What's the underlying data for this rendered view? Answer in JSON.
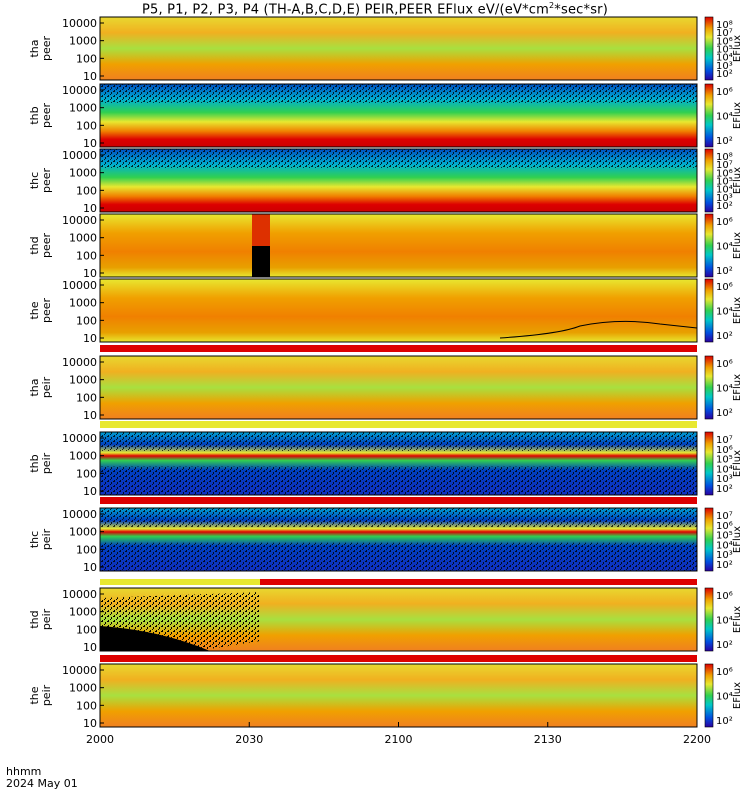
{
  "title": "P5, P1, P2, P3, P4 (TH-A,B,C,D,E) PEIR,PEER EFlux eV/(eV*cm",
  "title_sup": "2",
  "title_end": "*sec*sr)",
  "colorbar_label": "EFlux",
  "time_axis": {
    "line1": "hhmm",
    "line2": "2024 May 01"
  },
  "colors": {
    "red": "#dd0000",
    "orange": "#f0a000",
    "yellow": "#e8e830",
    "green": "#30d050",
    "cyan": "#00c8c8",
    "blue": "#0050e0",
    "black": "#000000"
  },
  "chart_data": {
    "type": "heatmap",
    "x_ticks": [
      "2000",
      "2030",
      "2100",
      "2130",
      "2200"
    ],
    "y_ticks": [
      "10000",
      "1000",
      "100",
      "10"
    ],
    "panels": [
      {
        "probe": "tha",
        "species": "peer",
        "cbar_ticks": [
          "10⁸",
          "10⁷",
          "10⁶",
          "10⁵",
          "10⁴",
          "10³",
          "10²"
        ],
        "pattern": "mixed"
      },
      {
        "probe": "thb",
        "species": "peer",
        "cbar_ticks": [
          "10⁶",
          "10⁴",
          "10²"
        ],
        "pattern": "noise"
      },
      {
        "probe": "thc",
        "species": "peer",
        "cbar_ticks": [
          "10⁸",
          "10⁷",
          "10⁶",
          "10⁵",
          "10⁴",
          "10³",
          "10²"
        ],
        "pattern": "noise"
      },
      {
        "probe": "thd",
        "species": "peer",
        "cbar_ticks": [
          "10⁶",
          "10⁴",
          "10²"
        ],
        "pattern": "warm"
      },
      {
        "probe": "the",
        "species": "peer",
        "cbar_ticks": [
          "10⁶",
          "10⁴",
          "10²"
        ],
        "pattern": "warm"
      },
      {
        "probe": "tha",
        "species": "peir",
        "cbar_ticks": [
          "10⁶",
          "10⁴",
          "10²"
        ],
        "pattern": "mixed"
      },
      {
        "probe": "thb",
        "species": "peir",
        "cbar_ticks": [
          "10⁷",
          "10⁶",
          "10⁵",
          "10⁴",
          "10³",
          "10²"
        ],
        "pattern": "ionnoise"
      },
      {
        "probe": "thc",
        "species": "peir",
        "cbar_ticks": [
          "10⁷",
          "10⁶",
          "10⁵",
          "10⁴",
          "10³",
          "10²"
        ],
        "pattern": "ionnoise"
      },
      {
        "probe": "thd",
        "species": "peir",
        "cbar_ticks": [
          "10⁶",
          "10⁴",
          "10²"
        ],
        "pattern": "thd"
      },
      {
        "probe": "the",
        "species": "peir",
        "cbar_ticks": [
          "10⁶",
          "10⁴",
          "10²"
        ],
        "pattern": "mixed"
      }
    ]
  }
}
